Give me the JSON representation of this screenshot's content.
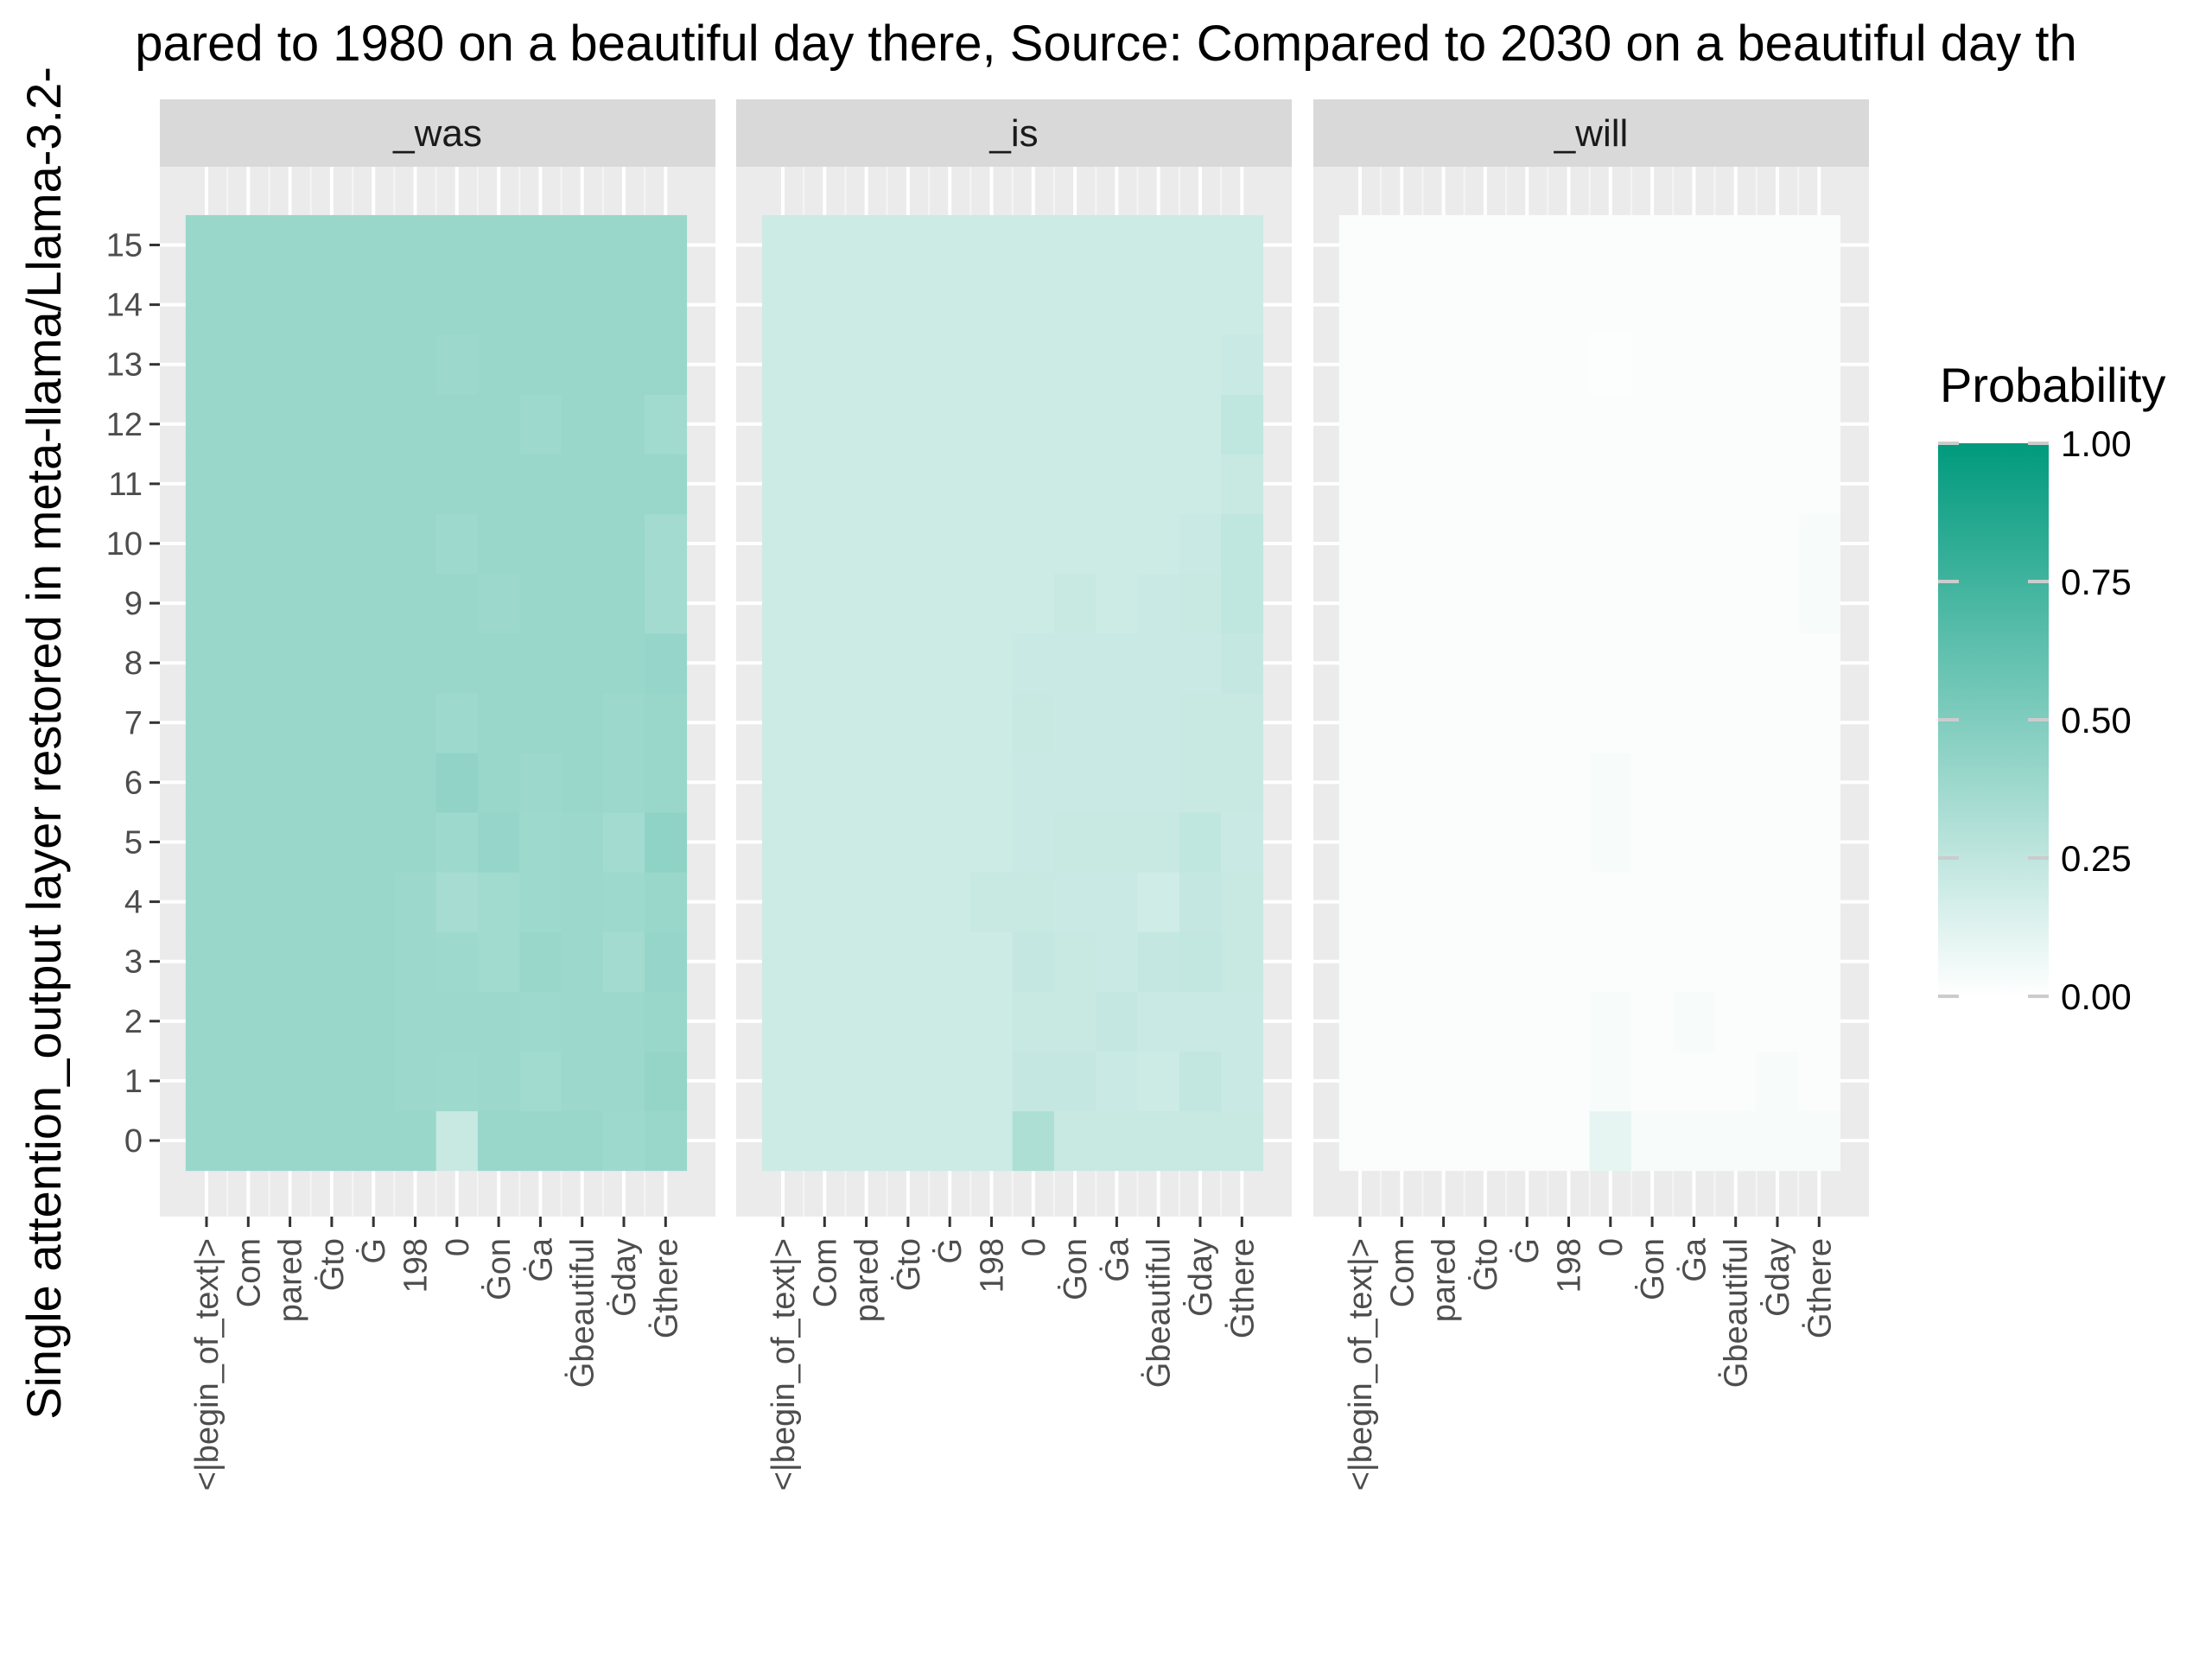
{
  "chart_data": {
    "type": "heatmap",
    "title": "pared to 1980 on a beautiful day there, Source: Compared to 2030 on a beautiful day th",
    "ylabel": "Single attention_output layer restored in meta-llama/Llama-3.2-",
    "xlabel": "",
    "x_categories": [
      "<|begin_of_text|>",
      "Com",
      "pared",
      "Ġto",
      "Ġ",
      "198",
      "0",
      "Ġon",
      "Ġa",
      "Ġbeautiful",
      "Ġday",
      "Ġthere"
    ],
    "y_categories": [
      "0",
      "1",
      "2",
      "3",
      "4",
      "5",
      "6",
      "7",
      "8",
      "9",
      "10",
      "11",
      "12",
      "13",
      "14",
      "15"
    ],
    "legend": {
      "title": "Probability",
      "breaks": [
        "1.00",
        "0.75",
        "0.50",
        "0.25",
        "0.00"
      ],
      "low_color": "#ffffff",
      "high_color": "#009a7d",
      "position": "right"
    },
    "panels": [
      {
        "label": "_was",
        "values": [
          [
            0.4,
            0.4,
            0.4,
            0.4,
            0.4,
            0.4,
            0.22,
            0.4,
            0.4,
            0.4,
            0.38,
            0.4
          ],
          [
            0.4,
            0.4,
            0.4,
            0.4,
            0.4,
            0.39,
            0.38,
            0.39,
            0.37,
            0.39,
            0.39,
            0.42
          ],
          [
            0.4,
            0.4,
            0.4,
            0.4,
            0.4,
            0.39,
            0.39,
            0.39,
            0.38,
            0.39,
            0.39,
            0.4
          ],
          [
            0.4,
            0.4,
            0.4,
            0.4,
            0.4,
            0.39,
            0.38,
            0.37,
            0.4,
            0.39,
            0.36,
            0.41
          ],
          [
            0.4,
            0.4,
            0.4,
            0.4,
            0.4,
            0.39,
            0.35,
            0.37,
            0.38,
            0.39,
            0.38,
            0.4
          ],
          [
            0.4,
            0.4,
            0.4,
            0.4,
            0.4,
            0.4,
            0.38,
            0.41,
            0.38,
            0.39,
            0.36,
            0.44
          ],
          [
            0.4,
            0.4,
            0.4,
            0.4,
            0.4,
            0.4,
            0.43,
            0.4,
            0.39,
            0.4,
            0.39,
            0.4
          ],
          [
            0.4,
            0.4,
            0.4,
            0.4,
            0.4,
            0.4,
            0.38,
            0.4,
            0.4,
            0.4,
            0.39,
            0.4
          ],
          [
            0.4,
            0.4,
            0.4,
            0.4,
            0.4,
            0.4,
            0.4,
            0.4,
            0.4,
            0.4,
            0.4,
            0.41
          ],
          [
            0.4,
            0.4,
            0.4,
            0.4,
            0.4,
            0.4,
            0.4,
            0.39,
            0.4,
            0.4,
            0.4,
            0.36
          ],
          [
            0.4,
            0.4,
            0.4,
            0.4,
            0.4,
            0.4,
            0.38,
            0.4,
            0.4,
            0.4,
            0.4,
            0.36
          ],
          [
            0.4,
            0.4,
            0.4,
            0.4,
            0.4,
            0.4,
            0.4,
            0.4,
            0.4,
            0.4,
            0.4,
            0.4
          ],
          [
            0.4,
            0.4,
            0.4,
            0.4,
            0.4,
            0.4,
            0.4,
            0.4,
            0.38,
            0.4,
            0.4,
            0.37
          ],
          [
            0.4,
            0.4,
            0.4,
            0.4,
            0.4,
            0.4,
            0.39,
            0.4,
            0.4,
            0.4,
            0.4,
            0.4
          ],
          [
            0.4,
            0.4,
            0.4,
            0.4,
            0.4,
            0.4,
            0.4,
            0.4,
            0.4,
            0.4,
            0.4,
            0.4
          ],
          [
            0.4,
            0.4,
            0.4,
            0.4,
            0.4,
            0.4,
            0.4,
            0.4,
            0.4,
            0.4,
            0.4,
            0.4
          ]
        ]
      },
      {
        "label": "_is",
        "values": [
          [
            0.2,
            0.2,
            0.2,
            0.2,
            0.2,
            0.2,
            0.32,
            0.22,
            0.22,
            0.22,
            0.22,
            0.22
          ],
          [
            0.2,
            0.2,
            0.2,
            0.2,
            0.2,
            0.2,
            0.23,
            0.23,
            0.21,
            0.2,
            0.24,
            0.21
          ],
          [
            0.2,
            0.2,
            0.2,
            0.2,
            0.2,
            0.2,
            0.22,
            0.22,
            0.23,
            0.21,
            0.21,
            0.21
          ],
          [
            0.2,
            0.2,
            0.2,
            0.2,
            0.2,
            0.2,
            0.23,
            0.22,
            0.21,
            0.23,
            0.24,
            0.22
          ],
          [
            0.2,
            0.2,
            0.2,
            0.2,
            0.2,
            0.22,
            0.22,
            0.21,
            0.21,
            0.19,
            0.23,
            0.22
          ],
          [
            0.2,
            0.2,
            0.2,
            0.2,
            0.2,
            0.2,
            0.21,
            0.22,
            0.22,
            0.22,
            0.25,
            0.21
          ],
          [
            0.2,
            0.2,
            0.2,
            0.2,
            0.2,
            0.2,
            0.21,
            0.21,
            0.21,
            0.21,
            0.22,
            0.22
          ],
          [
            0.2,
            0.2,
            0.2,
            0.2,
            0.2,
            0.2,
            0.22,
            0.21,
            0.21,
            0.21,
            0.22,
            0.22
          ],
          [
            0.2,
            0.2,
            0.2,
            0.2,
            0.2,
            0.2,
            0.21,
            0.21,
            0.21,
            0.21,
            0.21,
            0.23
          ],
          [
            0.2,
            0.2,
            0.2,
            0.2,
            0.2,
            0.2,
            0.2,
            0.22,
            0.2,
            0.21,
            0.22,
            0.25
          ],
          [
            0.2,
            0.2,
            0.2,
            0.2,
            0.2,
            0.2,
            0.2,
            0.2,
            0.2,
            0.2,
            0.21,
            0.25
          ],
          [
            0.2,
            0.2,
            0.2,
            0.2,
            0.2,
            0.2,
            0.2,
            0.2,
            0.2,
            0.2,
            0.2,
            0.22
          ],
          [
            0.2,
            0.2,
            0.2,
            0.2,
            0.2,
            0.2,
            0.2,
            0.2,
            0.2,
            0.2,
            0.2,
            0.25
          ],
          [
            0.2,
            0.2,
            0.2,
            0.2,
            0.2,
            0.2,
            0.2,
            0.2,
            0.2,
            0.2,
            0.2,
            0.21
          ],
          [
            0.2,
            0.2,
            0.2,
            0.2,
            0.2,
            0.2,
            0.2,
            0.2,
            0.2,
            0.2,
            0.2,
            0.2
          ],
          [
            0.2,
            0.2,
            0.2,
            0.2,
            0.2,
            0.2,
            0.2,
            0.2,
            0.2,
            0.2,
            0.2,
            0.2
          ]
        ]
      },
      {
        "label": "_will",
        "values": [
          [
            0.02,
            0.02,
            0.02,
            0.02,
            0.02,
            0.02,
            0.1,
            0.03,
            0.03,
            0.03,
            0.03,
            0.03
          ],
          [
            0.02,
            0.02,
            0.02,
            0.02,
            0.02,
            0.02,
            0.03,
            0.02,
            0.02,
            0.02,
            0.03,
            0.02
          ],
          [
            0.02,
            0.02,
            0.02,
            0.02,
            0.02,
            0.02,
            0.03,
            0.02,
            0.03,
            0.02,
            0.02,
            0.02
          ],
          [
            0.02,
            0.02,
            0.02,
            0.02,
            0.02,
            0.02,
            0.02,
            0.02,
            0.02,
            0.02,
            0.02,
            0.02
          ],
          [
            0.02,
            0.02,
            0.02,
            0.02,
            0.02,
            0.02,
            0.02,
            0.02,
            0.02,
            0.02,
            0.02,
            0.02
          ],
          [
            0.02,
            0.02,
            0.02,
            0.02,
            0.02,
            0.02,
            0.03,
            0.02,
            0.02,
            0.02,
            0.02,
            0.02
          ],
          [
            0.02,
            0.02,
            0.02,
            0.02,
            0.02,
            0.02,
            0.03,
            0.02,
            0.02,
            0.02,
            0.02,
            0.02
          ],
          [
            0.02,
            0.02,
            0.02,
            0.02,
            0.02,
            0.02,
            0.02,
            0.02,
            0.02,
            0.02,
            0.02,
            0.02
          ],
          [
            0.02,
            0.02,
            0.02,
            0.02,
            0.02,
            0.02,
            0.02,
            0.02,
            0.02,
            0.02,
            0.02,
            0.02
          ],
          [
            0.02,
            0.02,
            0.02,
            0.02,
            0.02,
            0.02,
            0.02,
            0.02,
            0.02,
            0.02,
            0.02,
            0.03
          ],
          [
            0.02,
            0.02,
            0.02,
            0.02,
            0.02,
            0.02,
            0.02,
            0.02,
            0.02,
            0.02,
            0.02,
            0.03
          ],
          [
            0.02,
            0.02,
            0.02,
            0.02,
            0.02,
            0.02,
            0.02,
            0.02,
            0.02,
            0.02,
            0.02,
            0.02
          ],
          [
            0.02,
            0.02,
            0.02,
            0.02,
            0.02,
            0.02,
            0.02,
            0.02,
            0.02,
            0.02,
            0.02,
            0.02
          ],
          [
            0.02,
            0.02,
            0.02,
            0.02,
            0.02,
            0.02,
            0.01,
            0.02,
            0.02,
            0.02,
            0.02,
            0.02
          ],
          [
            0.02,
            0.02,
            0.02,
            0.02,
            0.02,
            0.02,
            0.02,
            0.02,
            0.02,
            0.02,
            0.02,
            0.02
          ],
          [
            0.02,
            0.02,
            0.02,
            0.02,
            0.02,
            0.02,
            0.02,
            0.02,
            0.02,
            0.02,
            0.02,
            0.02
          ]
        ]
      }
    ]
  }
}
